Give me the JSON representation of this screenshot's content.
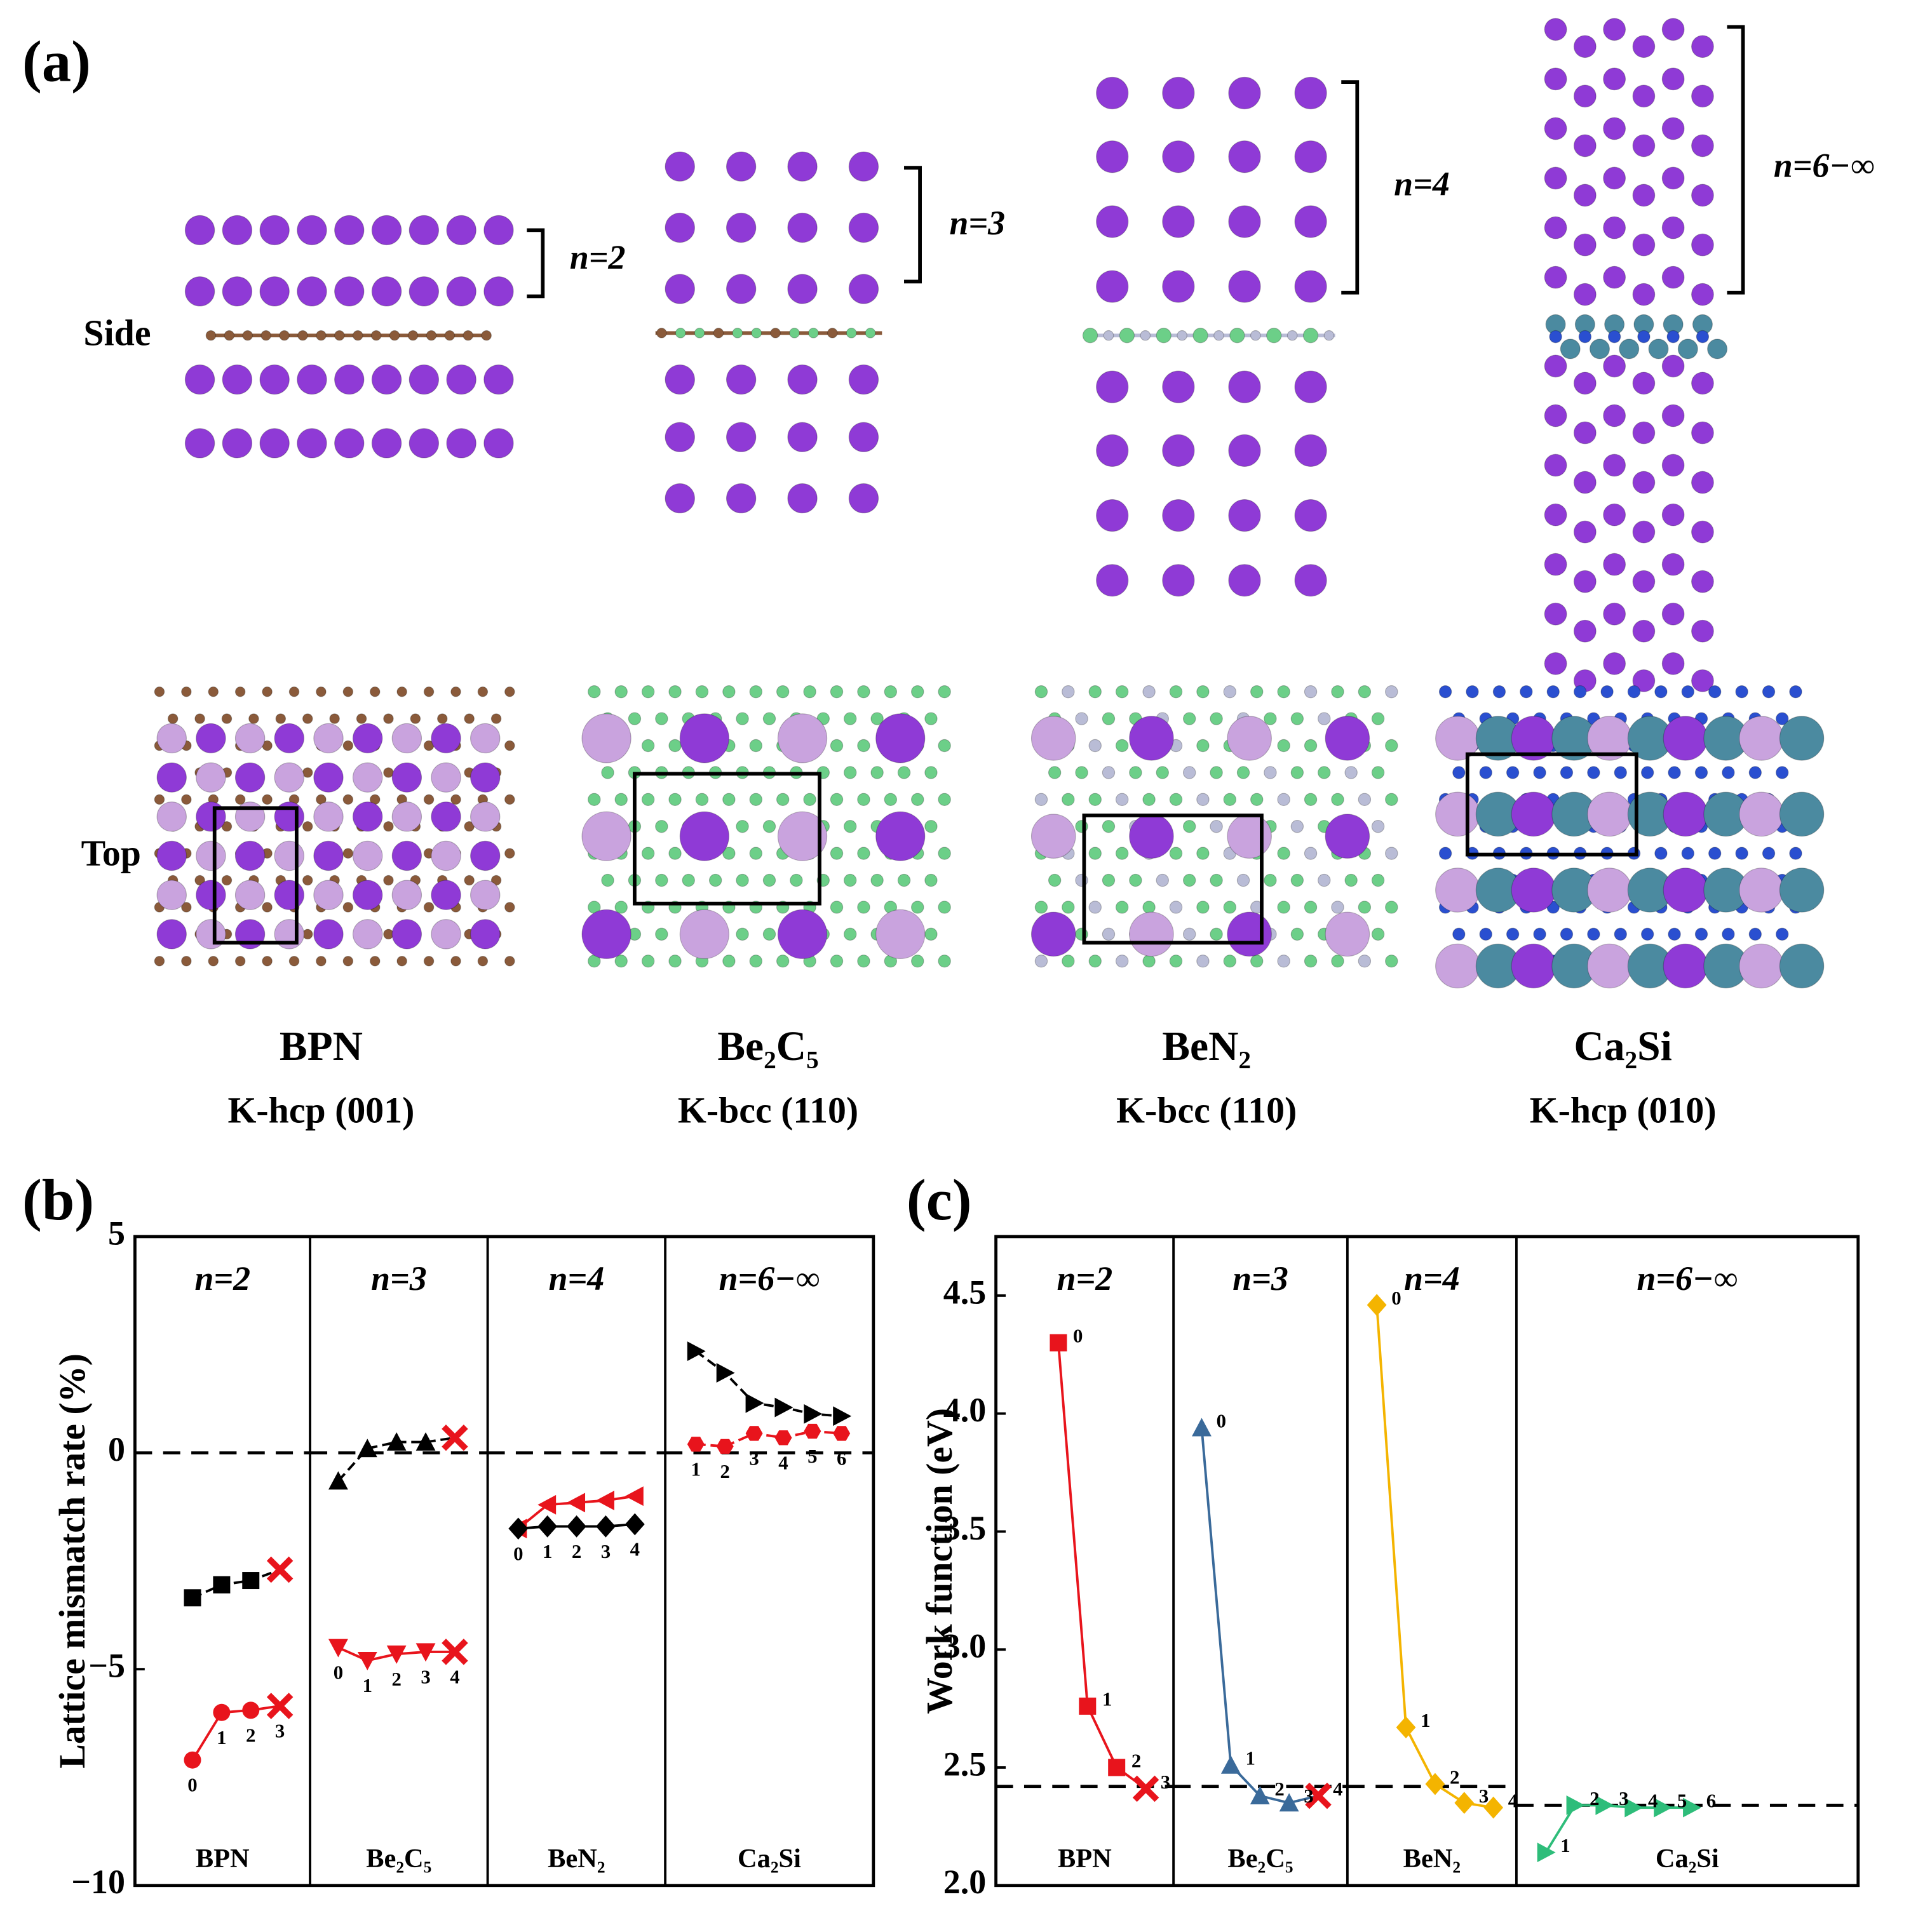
{
  "panel_a": {
    "label": "(a)",
    "side_label": "Side",
    "top_label": "Top",
    "columns": [
      {
        "n_label": "n=2",
        "material": "BPN",
        "facet": "K-hcp (001)"
      },
      {
        "n_label": "n=3",
        "material": "Be₂C₅",
        "facet": "K-bcc (110)"
      },
      {
        "n_label": "n=4",
        "material": "BeN₂",
        "facet": "K-bcc (110)"
      },
      {
        "n_label": "n=6−∞",
        "material": "Ca₂Si",
        "facet": "K-hcp (010)"
      }
    ]
  },
  "chart_data": [
    {
      "type": "line",
      "panel_label": "(b)",
      "ylabel": "Lattice mismatch rate (%)",
      "ylim": [
        -10,
        5
      ],
      "yticks": [
        {
          "value": -10,
          "label": "−10"
        },
        {
          "value": -5,
          "label": "−5"
        },
        0,
        5
      ],
      "point_label_position": "below",
      "panels": [
        {
          "title": "n=2",
          "material": "BPN",
          "categories": [
            "0",
            "1",
            "2",
            "3"
          ],
          "hline": 0,
          "series": [
            {
              "color": "#000000",
              "marker": "square",
              "end_marker": "cross",
              "values": [
                -3.35,
                -3.05,
                -2.95,
                -2.7
              ]
            },
            {
              "color": "#e8141c",
              "marker": "circle",
              "end_marker": "cross",
              "values": [
                -7.1,
                -6.0,
                -5.95,
                -5.85
              ]
            }
          ]
        },
        {
          "title": "n=3",
          "material": "Be₂C₅",
          "categories": [
            "0",
            "1",
            "2",
            "3",
            "4"
          ],
          "hline": 0,
          "series": [
            {
              "color": "#000000",
              "marker": "triangle-up",
              "end_marker": "cross",
              "values": [
                -0.65,
                0.1,
                0.25,
                0.25,
                0.35
              ]
            },
            {
              "color": "#e8141c",
              "marker": "triangle-down",
              "end_marker": "cross",
              "values": [
                -4.5,
                -4.8,
                -4.65,
                -4.6,
                -4.6
              ]
            }
          ]
        },
        {
          "title": "n=4",
          "material": "BeN₂",
          "categories": [
            "0",
            "1",
            "2",
            "3",
            "4"
          ],
          "hline": 0,
          "series": [
            {
              "color": "#e8141c",
              "marker": "triangle-left",
              "values": [
                -1.75,
                -1.2,
                -1.15,
                -1.1,
                -1.0
              ]
            },
            {
              "color": "#000000",
              "marker": "diamond",
              "values": [
                -1.75,
                -1.7,
                -1.7,
                -1.7,
                -1.65
              ]
            }
          ]
        },
        {
          "title": "n=6−∞",
          "material": "Ca₂Si",
          "categories": [
            "1",
            "2",
            "3",
            "4",
            "5",
            "6"
          ],
          "hline": 0,
          "series": [
            {
              "color": "#000000",
              "marker": "triangle-right",
              "values": [
                2.35,
                1.85,
                1.15,
                1.05,
                0.9,
                0.85
              ]
            },
            {
              "color": "#e8141c",
              "marker": "hexagon",
              "values": [
                0.2,
                0.15,
                0.45,
                0.35,
                0.5,
                0.45
              ]
            }
          ]
        }
      ]
    },
    {
      "type": "line",
      "panel_label": "(c)",
      "ylabel": "Work function (eV)",
      "ylim": [
        2.0,
        4.75
      ],
      "yticks": [
        {
          "value": 2,
          "label": "2.0"
        },
        2.5,
        {
          "value": 3,
          "label": "3.0"
        },
        3.5,
        {
          "value": 4,
          "label": "4.0"
        },
        4.5
      ],
      "point_label_position": "right",
      "panels": [
        {
          "title": "n=2",
          "material": "BPN",
          "categories": [
            "0",
            "1",
            "2",
            "3"
          ],
          "hline": 2.42,
          "series": [
            {
              "color": "#e8141c",
              "marker": "square",
              "end_marker": "cross",
              "values": [
                4.3,
                2.76,
                2.5,
                2.41
              ]
            }
          ]
        },
        {
          "title": "n=3",
          "material": "Be₂C₅",
          "categories": [
            "0",
            "1",
            "2",
            "3",
            "4"
          ],
          "hline": 2.42,
          "series": [
            {
              "color": "#3a6a9a",
              "marker": "triangle-up",
              "end_marker": "cross",
              "values": [
                3.94,
                2.51,
                2.38,
                2.35,
                2.38
              ]
            }
          ]
        },
        {
          "title": "n=4",
          "material": "BeN₂",
          "categories": [
            "0",
            "1",
            "2",
            "3",
            "4"
          ],
          "hline": 2.42,
          "series": [
            {
              "color": "#f4b400",
              "marker": "diamond",
              "values": [
                4.46,
                2.67,
                2.43,
                2.35,
                2.33
              ]
            }
          ]
        },
        {
          "title": "n=6−∞",
          "material": "Ca₂Si",
          "categories": [
            "1",
            "2",
            "3",
            "4",
            "5",
            "6"
          ],
          "hline": 2.34,
          "series": [
            {
              "color": "#2ebd7a",
              "marker": "triangle-right",
              "values": [
                2.14,
                2.34,
                2.34,
                2.33,
                2.33,
                2.33
              ]
            }
          ]
        }
      ]
    }
  ]
}
